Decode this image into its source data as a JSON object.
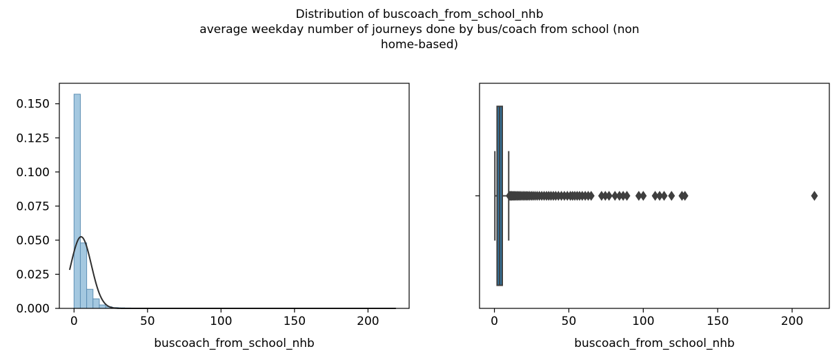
{
  "title_lines": [
    "Distribution of buscoach_from_school_nhb",
    "average weekday number of journeys done by bus/coach from school (non",
    "home-based)"
  ],
  "colors": {
    "hist_fill": "#a4c8e0",
    "hist_edge": "#5d8fb4",
    "kde_line": "#2e2e2e",
    "box_fill": "#3274a1",
    "box_edge": "#3f3f3f",
    "axis": "#000000"
  },
  "chart_data": [
    {
      "type": "bar",
      "subtype": "histogram_with_kde",
      "xlabel": "buscoach_from_school_nhb",
      "ylabel": "",
      "xlim": [
        -10,
        228
      ],
      "ylim": [
        0,
        0.165
      ],
      "xticks": [
        0,
        50,
        100,
        150,
        200
      ],
      "xtick_labels": [
        "0",
        "50",
        "100",
        "150",
        "200"
      ],
      "yticks": [
        0,
        0.025,
        0.05,
        0.075,
        0.1,
        0.125,
        0.15
      ],
      "ytick_labels": [
        "0.000",
        "0.025",
        "0.050",
        "0.075",
        "0.100",
        "0.125",
        "0.150"
      ],
      "bin_width": 4.3,
      "bin_start": 0,
      "bin_heights": [
        0.157,
        0.048,
        0.014,
        0.007,
        0.0025,
        0.0012,
        0.0006,
        0.0004,
        0.0003,
        0.0002,
        0.0002,
        0.0001
      ],
      "kde": {
        "x_range": [
          -3,
          219
        ],
        "peak_x": 4.8,
        "peak_y": 0.0525,
        "sigma": 7.0
      }
    },
    {
      "type": "box",
      "xlabel": "buscoach_from_school_nhb",
      "xlim": [
        -10,
        225
      ],
      "xticks": [
        0,
        50,
        100,
        150,
        200
      ],
      "xtick_labels": [
        "0",
        "50",
        "100",
        "150",
        "200"
      ],
      "whisker_low": 0.3,
      "q1": 1.8,
      "median": 3.5,
      "q3": 5.3,
      "whisker_high": 9.6,
      "outliers": [
        10,
        10.5,
        11,
        11.6,
        12.2,
        12.8,
        13.5,
        14.2,
        15,
        15.8,
        16.6,
        17.5,
        18.5,
        19.5,
        20.5,
        21.5,
        22.5,
        23.6,
        24.8,
        26,
        27.3,
        28.7,
        30.2,
        31.8,
        33.4,
        35,
        36.5,
        38,
        39.6,
        41.2,
        43,
        45,
        47,
        49,
        51,
        52.5,
        54,
        55.6,
        57.2,
        59,
        61,
        63,
        65,
        72,
        74.5,
        77,
        81,
        84,
        86.5,
        89,
        97,
        100,
        108,
        111,
        114,
        119,
        126,
        128,
        215
      ]
    }
  ]
}
